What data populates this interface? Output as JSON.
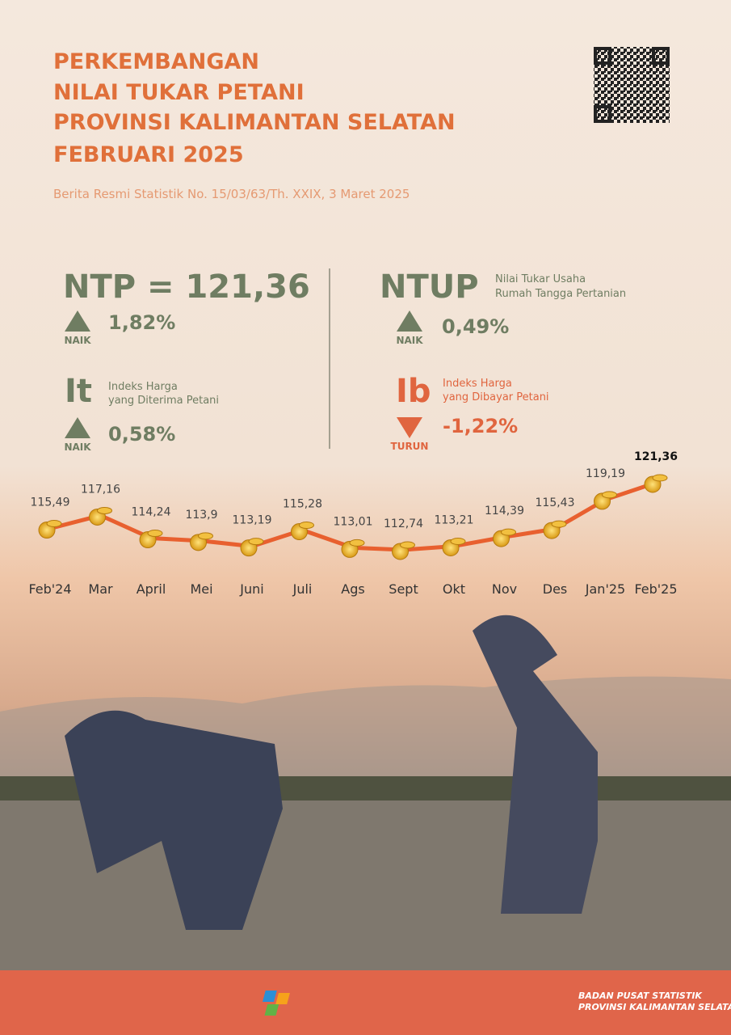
{
  "header": {
    "title_lines": [
      "PERKEMBANGAN",
      "NILAI TUKAR PETANI",
      "PROVINSI KALIMANTAN SELATAN",
      "FEBRUARI 2025"
    ],
    "subtitle": "Berita Resmi Statistik No. 15/03/63/Th. XXIX, 3 Maret 2025"
  },
  "stats": {
    "ntp": {
      "label": "NTP = 121,36",
      "change": "1,82%",
      "direction": "NAIK"
    },
    "it": {
      "symbol": "It",
      "desc_lines": [
        "Indeks Harga",
        "yang Diterima Petani"
      ],
      "change": "0,58%",
      "direction": "NAIK"
    },
    "ntup": {
      "label": "NTUP",
      "desc_lines": [
        "Nilai Tukar Usaha",
        "Rumah Tangga Pertanian"
      ],
      "change": "0,49%",
      "direction": "NAIK"
    },
    "ib": {
      "symbol": "Ib",
      "desc_lines": [
        "Indeks Harga",
        "yang Dibayar Petani"
      ],
      "change": "-1,22%",
      "direction": "TURUN"
    }
  },
  "chart_data": {
    "type": "line",
    "color": "#e8602f",
    "categories": [
      "Feb'24",
      "Mar",
      "April",
      "Mei",
      "Juni",
      "Juli",
      "Ags",
      "Sept",
      "Okt",
      "Nov",
      "Des",
      "Jan'25",
      "Feb'25"
    ],
    "values": [
      115.49,
      117.16,
      114.24,
      113.9,
      113.19,
      115.28,
      113.01,
      112.74,
      113.21,
      114.39,
      115.43,
      119.19,
      121.36
    ],
    "value_labels": [
      "115,49",
      "117,16",
      "114,24",
      "113,9",
      "113,19",
      "115,28",
      "113,01",
      "112,74",
      "113,21",
      "114,39",
      "115,43",
      "119,19",
      "121,36"
    ]
  },
  "footer": {
    "org_lines": [
      "BADAN PUSAT STATISTIK",
      "PROVINSI KALIMANTAN SELATAN"
    ]
  }
}
